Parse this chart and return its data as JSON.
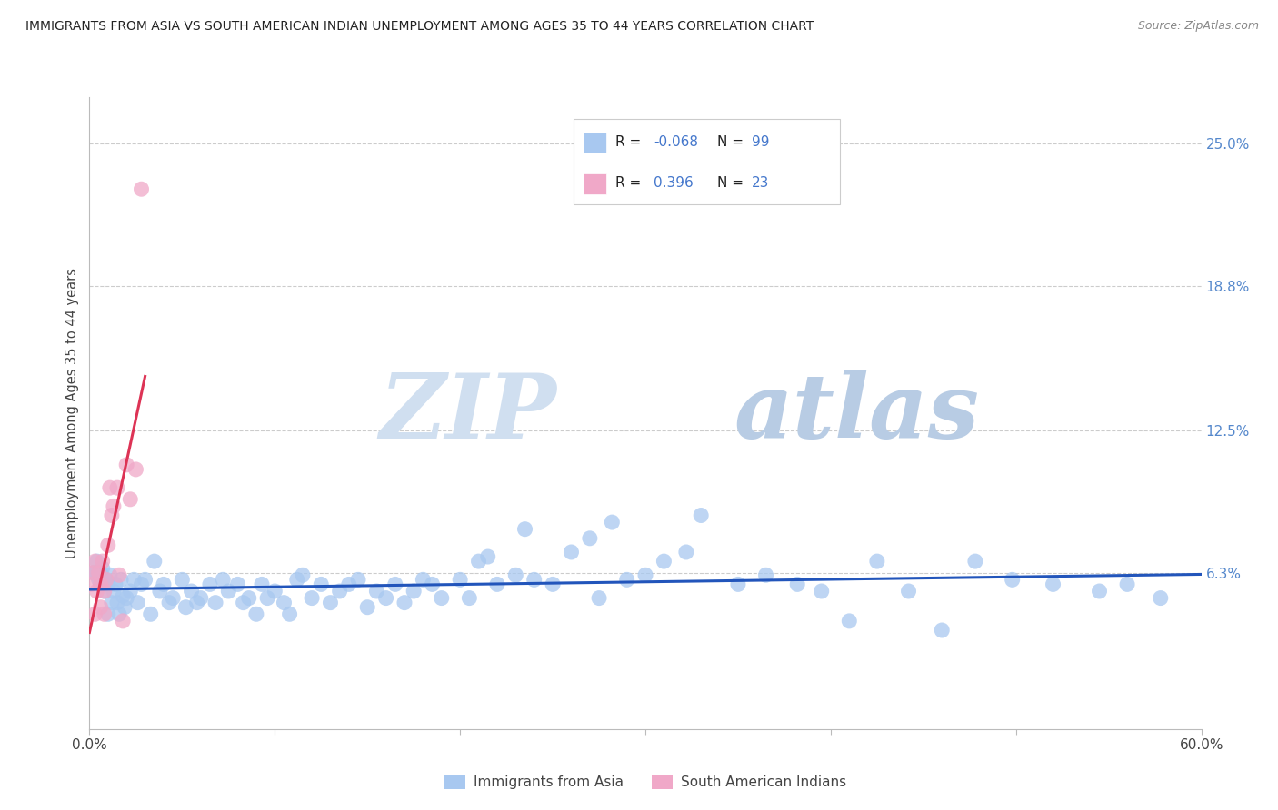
{
  "title": "IMMIGRANTS FROM ASIA VS SOUTH AMERICAN INDIAN UNEMPLOYMENT AMONG AGES 35 TO 44 YEARS CORRELATION CHART",
  "source": "Source: ZipAtlas.com",
  "ylabel": "Unemployment Among Ages 35 to 44 years",
  "xlim": [
    0.0,
    0.6
  ],
  "ylim": [
    -0.005,
    0.27
  ],
  "yticks": [
    0.063,
    0.125,
    0.188,
    0.25
  ],
  "ytick_labels": [
    "6.3%",
    "12.5%",
    "18.8%",
    "25.0%"
  ],
  "xticks": [
    0.0,
    0.1,
    0.2,
    0.3,
    0.4,
    0.5,
    0.6
  ],
  "xtick_labels": [
    "0.0%",
    "",
    "",
    "",
    "",
    "",
    "60.0%"
  ],
  "r_asia": -0.068,
  "n_asia": 99,
  "r_sam": 0.396,
  "n_sam": 23,
  "series1_color": "#a8c8f0",
  "series2_color": "#f0a8c8",
  "trendline1_color": "#2255bb",
  "trendline2_color": "#dd3355",
  "background_color": "#ffffff",
  "grid_color": "#cccccc",
  "watermark_zip": "ZIP",
  "watermark_atlas": "atlas",
  "asia_x": [
    0.002,
    0.003,
    0.004,
    0.005,
    0.006,
    0.006,
    0.007,
    0.008,
    0.009,
    0.01,
    0.01,
    0.011,
    0.012,
    0.013,
    0.014,
    0.015,
    0.016,
    0.017,
    0.018,
    0.019,
    0.02,
    0.022,
    0.024,
    0.026,
    0.028,
    0.03,
    0.033,
    0.035,
    0.038,
    0.04,
    0.043,
    0.045,
    0.05,
    0.052,
    0.055,
    0.058,
    0.06,
    0.065,
    0.068,
    0.072,
    0.075,
    0.08,
    0.083,
    0.086,
    0.09,
    0.093,
    0.096,
    0.1,
    0.105,
    0.108,
    0.112,
    0.115,
    0.12,
    0.125,
    0.13,
    0.135,
    0.14,
    0.145,
    0.15,
    0.155,
    0.16,
    0.165,
    0.17,
    0.175,
    0.18,
    0.185,
    0.19,
    0.2,
    0.205,
    0.21,
    0.215,
    0.22,
    0.23,
    0.235,
    0.24,
    0.25,
    0.26,
    0.27,
    0.275,
    0.282,
    0.29,
    0.3,
    0.31,
    0.322,
    0.33,
    0.35,
    0.365,
    0.382,
    0.395,
    0.41,
    0.425,
    0.442,
    0.46,
    0.478,
    0.498,
    0.52,
    0.545,
    0.56,
    0.578
  ],
  "asia_y": [
    0.063,
    0.063,
    0.068,
    0.06,
    0.058,
    0.063,
    0.065,
    0.055,
    0.06,
    0.045,
    0.058,
    0.062,
    0.05,
    0.055,
    0.058,
    0.05,
    0.045,
    0.06,
    0.053,
    0.048,
    0.052,
    0.055,
    0.06,
    0.05,
    0.058,
    0.06,
    0.045,
    0.068,
    0.055,
    0.058,
    0.05,
    0.052,
    0.06,
    0.048,
    0.055,
    0.05,
    0.052,
    0.058,
    0.05,
    0.06,
    0.055,
    0.058,
    0.05,
    0.052,
    0.045,
    0.058,
    0.052,
    0.055,
    0.05,
    0.045,
    0.06,
    0.062,
    0.052,
    0.058,
    0.05,
    0.055,
    0.058,
    0.06,
    0.048,
    0.055,
    0.052,
    0.058,
    0.05,
    0.055,
    0.06,
    0.058,
    0.052,
    0.06,
    0.052,
    0.068,
    0.07,
    0.058,
    0.062,
    0.082,
    0.06,
    0.058,
    0.072,
    0.078,
    0.052,
    0.085,
    0.06,
    0.062,
    0.068,
    0.072,
    0.088,
    0.058,
    0.062,
    0.058,
    0.055,
    0.042,
    0.068,
    0.055,
    0.038,
    0.068,
    0.06,
    0.058,
    0.055,
    0.058,
    0.052
  ],
  "sam_x": [
    0.001,
    0.002,
    0.003,
    0.003,
    0.004,
    0.005,
    0.006,
    0.006,
    0.007,
    0.008,
    0.008,
    0.009,
    0.01,
    0.011,
    0.012,
    0.013,
    0.015,
    0.016,
    0.018,
    0.02,
    0.022,
    0.025,
    0.028
  ],
  "sam_y": [
    0.058,
    0.063,
    0.045,
    0.068,
    0.055,
    0.063,
    0.058,
    0.048,
    0.068,
    0.045,
    0.055,
    0.06,
    0.075,
    0.1,
    0.088,
    0.092,
    0.1,
    0.062,
    0.042,
    0.11,
    0.095,
    0.108,
    0.23
  ]
}
